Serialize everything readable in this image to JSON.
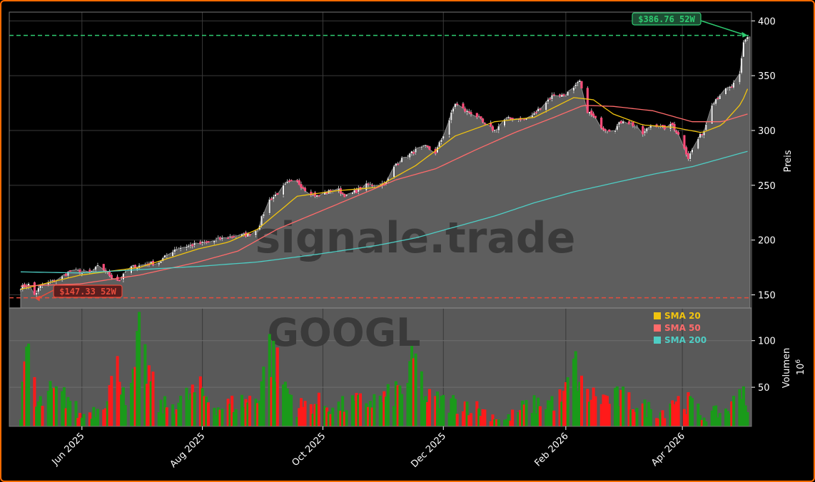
{
  "chart_data": {
    "type": "candlestick",
    "ticker_watermark": "GOOGL",
    "site_watermark": "signale.trade",
    "price_axis": {
      "label": "Preis",
      "ticks": [
        150,
        200,
        250,
        300,
        350,
        400
      ],
      "range": [
        138,
        408
      ]
    },
    "volume_axis": {
      "label": "Volumen",
      "exponent_label": "10",
      "exponent_power": "6",
      "ticks": [
        50,
        100
      ],
      "range": [
        8,
        135
      ]
    },
    "x_ticks": [
      "Jun 2025",
      "Aug 2025",
      "Oct 2025",
      "Dec 2025",
      "Feb 2026",
      "Apr 2026"
    ],
    "x_tick_days": [
      31,
      92,
      153,
      214,
      276,
      335
    ],
    "x_range_days": [
      0,
      370
    ],
    "high_52w": {
      "price": 386.76,
      "label": "$386.76 52W",
      "color": "#2ecc71"
    },
    "low_52w": {
      "price": 147.33,
      "label": "$147.33 52W",
      "color": "#e74c3c"
    },
    "legend": [
      {
        "name": "SMA 20",
        "color": "#f1c40f"
      },
      {
        "name": "SMA 50",
        "color": "#ff6b6b"
      },
      {
        "name": "SMA 200",
        "color": "#4ecdc4"
      }
    ],
    "price_keypoints": [
      [
        0,
        157
      ],
      [
        5,
        160
      ],
      [
        7,
        150
      ],
      [
        10,
        158
      ],
      [
        20,
        165
      ],
      [
        25,
        172
      ],
      [
        35,
        170
      ],
      [
        40,
        177
      ],
      [
        45,
        168
      ],
      [
        50,
        163
      ],
      [
        55,
        175
      ],
      [
        70,
        180
      ],
      [
        78,
        192
      ],
      [
        85,
        195
      ],
      [
        95,
        198
      ],
      [
        105,
        203
      ],
      [
        115,
        205
      ],
      [
        120,
        210
      ],
      [
        125,
        235
      ],
      [
        130,
        243
      ],
      [
        135,
        252
      ],
      [
        140,
        253
      ],
      [
        145,
        245
      ],
      [
        150,
        240
      ],
      [
        160,
        247
      ],
      [
        165,
        240
      ],
      [
        175,
        250
      ],
      [
        185,
        252
      ],
      [
        190,
        270
      ],
      [
        200,
        282
      ],
      [
        205,
        285
      ],
      [
        210,
        280
      ],
      [
        215,
        300
      ],
      [
        220,
        325
      ],
      [
        225,
        318
      ],
      [
        230,
        315
      ],
      [
        235,
        305
      ],
      [
        240,
        300
      ],
      [
        245,
        310
      ],
      [
        250,
        312
      ],
      [
        255,
        310
      ],
      [
        260,
        315
      ],
      [
        265,
        325
      ],
      [
        270,
        333
      ],
      [
        275,
        332
      ],
      [
        280,
        338
      ],
      [
        283,
        345
      ],
      [
        286,
        320
      ],
      [
        290,
        312
      ],
      [
        295,
        302
      ],
      [
        300,
        300
      ],
      [
        305,
        310
      ],
      [
        310,
        305
      ],
      [
        315,
        297
      ],
      [
        320,
        307
      ],
      [
        325,
        302
      ],
      [
        330,
        305
      ],
      [
        335,
        290
      ],
      [
        338,
        275
      ],
      [
        342,
        290
      ],
      [
        346,
        300
      ],
      [
        350,
        325
      ],
      [
        355,
        335
      ],
      [
        360,
        340
      ],
      [
        364,
        350
      ],
      [
        366,
        380
      ],
      [
        368,
        386
      ]
    ],
    "sma_keypoints": {
      "SMA 20": [
        [
          0,
          155
        ],
        [
          30,
          168
        ],
        [
          60,
          175
        ],
        [
          90,
          192
        ],
        [
          105,
          198
        ],
        [
          120,
          210
        ],
        [
          140,
          240
        ],
        [
          160,
          245
        ],
        [
          180,
          248
        ],
        [
          200,
          268
        ],
        [
          220,
          295
        ],
        [
          240,
          308
        ],
        [
          260,
          312
        ],
        [
          280,
          330
        ],
        [
          290,
          328
        ],
        [
          300,
          315
        ],
        [
          315,
          305
        ],
        [
          330,
          303
        ],
        [
          345,
          298
        ],
        [
          355,
          305
        ],
        [
          365,
          325
        ],
        [
          368,
          338
        ]
      ],
      "SMA 50": [
        [
          0,
          158
        ],
        [
          30,
          160
        ],
        [
          60,
          168
        ],
        [
          90,
          180
        ],
        [
          110,
          190
        ],
        [
          130,
          210
        ],
        [
          150,
          225
        ],
        [
          170,
          240
        ],
        [
          190,
          255
        ],
        [
          210,
          265
        ],
        [
          230,
          282
        ],
        [
          250,
          298
        ],
        [
          270,
          312
        ],
        [
          285,
          323
        ],
        [
          300,
          322
        ],
        [
          320,
          318
        ],
        [
          340,
          308
        ],
        [
          355,
          308
        ],
        [
          368,
          315
        ]
      ],
      "SMA 200": [
        [
          0,
          171
        ],
        [
          30,
          170
        ],
        [
          60,
          173
        ],
        [
          90,
          176
        ],
        [
          120,
          180
        ],
        [
          150,
          187
        ],
        [
          180,
          195
        ],
        [
          200,
          202
        ],
        [
          220,
          212
        ],
        [
          240,
          222
        ],
        [
          260,
          234
        ],
        [
          280,
          244
        ],
        [
          300,
          252
        ],
        [
          320,
          260
        ],
        [
          340,
          267
        ],
        [
          368,
          281
        ]
      ]
    },
    "volume_keypoints": [
      [
        0,
        25
      ],
      [
        5,
        120
      ],
      [
        8,
        30
      ],
      [
        15,
        45
      ],
      [
        25,
        40
      ],
      [
        30,
        20
      ],
      [
        40,
        30
      ],
      [
        50,
        75
      ],
      [
        55,
        30
      ],
      [
        60,
        102
      ],
      [
        70,
        30
      ],
      [
        80,
        35
      ],
      [
        90,
        50
      ],
      [
        100,
        30
      ],
      [
        110,
        35
      ],
      [
        120,
        40
      ],
      [
        125,
        100
      ],
      [
        135,
        50
      ],
      [
        140,
        30
      ],
      [
        150,
        35
      ],
      [
        160,
        30
      ],
      [
        170,
        35
      ],
      [
        185,
        40
      ],
      [
        195,
        55
      ],
      [
        200,
        85
      ],
      [
        205,
        40
      ],
      [
        215,
        35
      ],
      [
        225,
        35
      ],
      [
        235,
        25
      ],
      [
        245,
        15
      ],
      [
        255,
        30
      ],
      [
        265,
        35
      ],
      [
        275,
        40
      ],
      [
        280,
        80
      ],
      [
        285,
        45
      ],
      [
        295,
        40
      ],
      [
        305,
        40
      ],
      [
        315,
        30
      ],
      [
        325,
        25
      ],
      [
        330,
        40
      ],
      [
        335,
        35
      ],
      [
        340,
        35
      ],
      [
        345,
        20
      ],
      [
        355,
        25
      ],
      [
        360,
        30
      ],
      [
        365,
        60
      ],
      [
        368,
        30
      ]
    ]
  }
}
